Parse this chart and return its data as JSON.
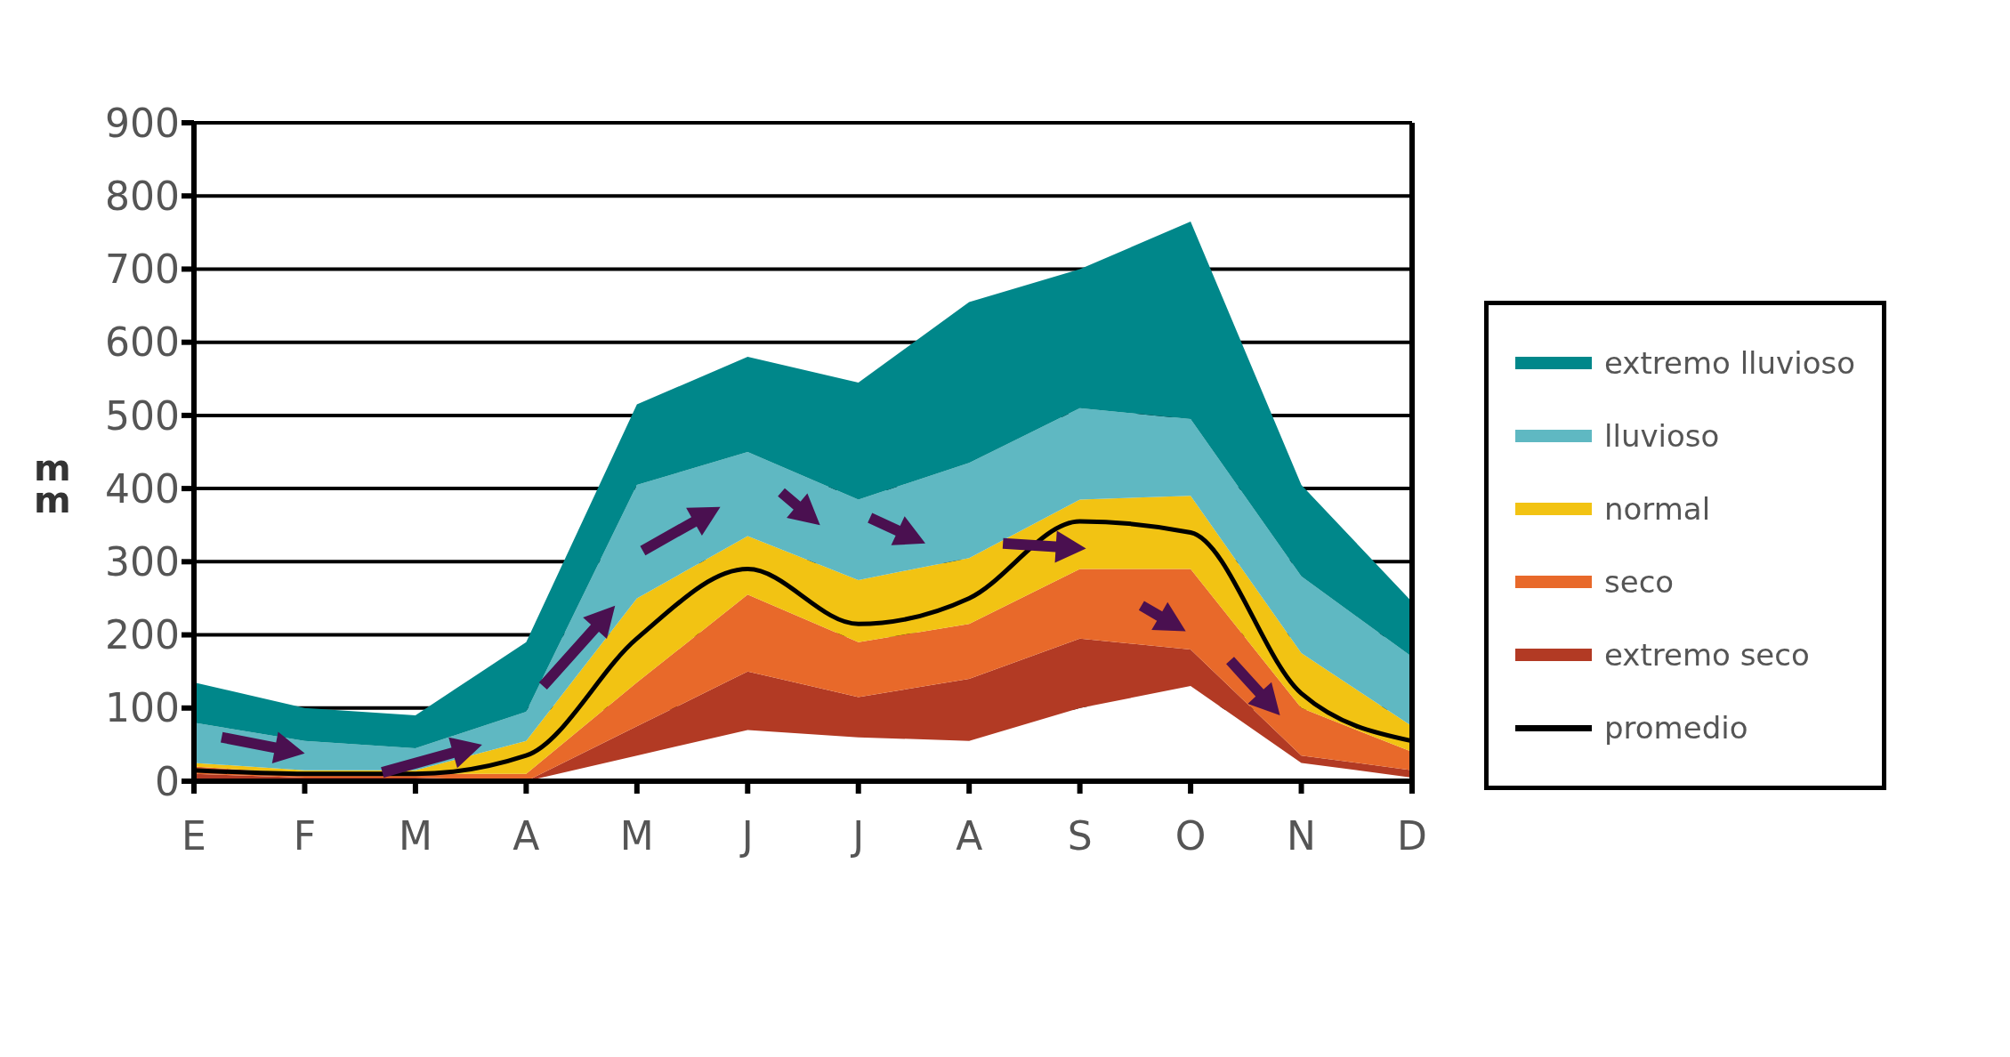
{
  "chart_data": {
    "type": "area",
    "stacked": true,
    "ylabel": "mm",
    "categories": [
      "E",
      "F",
      "M",
      "A",
      "M",
      "J",
      "J",
      "A",
      "S",
      "O",
      "N",
      "D"
    ],
    "ylim": [
      0,
      900
    ],
    "yticks": [
      0,
      100,
      200,
      300,
      400,
      500,
      600,
      700,
      800,
      900
    ],
    "grid": "y",
    "legend": "right",
    "series": [
      {
        "color": "#ffffff",
        "values": [
          0,
          0,
          0,
          0,
          35,
          70,
          60,
          55,
          100,
          130,
          25,
          5
        ]
      },
      {
        "name": "extremo seco",
        "color": "#b23a24",
        "values": [
          10,
          5,
          5,
          0,
          40,
          80,
          55,
          85,
          95,
          50,
          10,
          10
        ]
      },
      {
        "name": "seco",
        "color": "#e8692a",
        "values": [
          10,
          5,
          5,
          10,
          60,
          105,
          75,
          75,
          95,
          110,
          65,
          25
        ]
      },
      {
        "name": "normal",
        "color": "#f2c313",
        "values": [
          5,
          5,
          5,
          45,
          115,
          80,
          85,
          90,
          95,
          100,
          75,
          35
        ]
      },
      {
        "name": "lluvioso",
        "color": "#5fb8c2",
        "values": [
          55,
          40,
          30,
          40,
          155,
          115,
          110,
          130,
          125,
          105,
          105,
          95
        ]
      },
      {
        "name": "extremo lluvioso",
        "color": "#00878a",
        "values": [
          55,
          45,
          45,
          95,
          110,
          130,
          160,
          220,
          190,
          270,
          125,
          75
        ]
      },
      {
        "name": "promedio",
        "type": "line",
        "color": "#000000",
        "values": [
          15,
          10,
          10,
          35,
          195,
          290,
          215,
          250,
          355,
          340,
          120,
          55
        ]
      }
    ]
  }
}
